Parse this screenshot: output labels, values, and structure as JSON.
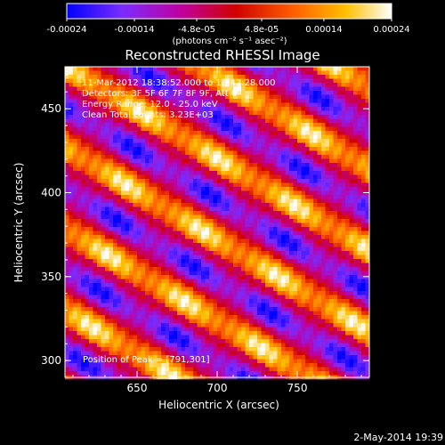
{
  "chart_data": {
    "type": "heatmap",
    "title": "Reconstructed RHESSI Image",
    "xlabel": "Heliocentric X (arcsec)",
    "ylabel": "Heliocentric Y (arcsec)",
    "xlim": [
      605,
      795
    ],
    "ylim": [
      290,
      475
    ],
    "x_ticks": [
      650,
      700,
      750
    ],
    "y_ticks": [
      300,
      350,
      400,
      450
    ],
    "x_tick_labels": [
      "650",
      "700",
      "750"
    ],
    "y_tick_labels": [
      "300",
      "350",
      "400",
      "450"
    ],
    "colorbar": {
      "ticks": [
        -0.00024,
        -0.00014,
        -4.8e-05,
        4.8e-05,
        0.00014,
        0.00024
      ],
      "tick_labels": [
        "-0.00024",
        "-0.00014",
        "-4.8e-05",
        "4.8e-05",
        "0.00014",
        "0.00024"
      ],
      "unit_label": "(photons cm⁻² s⁻¹ asec⁻²)",
      "range": [
        -0.00024,
        0.00024
      ],
      "colors": [
        "#0000ff",
        "#7a2cff",
        "#c000a0",
        "#d00000",
        "#ff6000",
        "#ffc000",
        "#ffffff"
      ]
    },
    "annotations": [
      "11-Mar-2012 18:38:52.000 to 18:42:28.000",
      "Detectors: 3F 5F 6F 7F 8F 9F, Att 0",
      "Energy Range: 12.0 - 25.0 keV",
      "Clean    Total counts: 3.23E+03"
    ],
    "peak_label": "Position of Peak = [791,301]",
    "peak": [
      791,
      301
    ],
    "pattern": {
      "stripe_direction_deg": 30,
      "stripe_period_arcsec": 42
    }
  },
  "footer": {
    "date": "2-May-2014 19:39"
  }
}
